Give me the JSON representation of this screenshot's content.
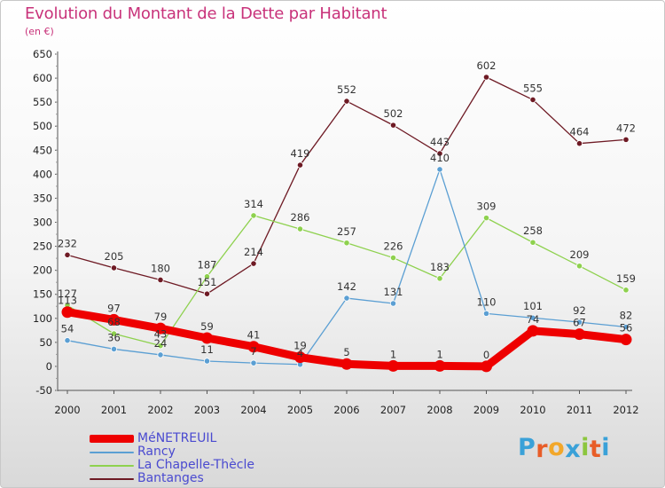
{
  "title": "Evolution du Montant de la Dette par Habitant",
  "subtitle": "(en €)",
  "logo": {
    "letters": [
      "P",
      "r",
      "o",
      "x",
      "i",
      "t",
      "i"
    ],
    "colors": [
      "#3aa1d8",
      "#e85d28",
      "#f2a72a",
      "#3aa1d8",
      "#8cc63e",
      "#e85d28",
      "#3aa1d8"
    ]
  },
  "chart_data": {
    "type": "line",
    "title": "Evolution du Montant de la Dette par Habitant",
    "ylabel": "(en €)",
    "xlabel": "",
    "x": [
      "2000",
      "2001",
      "2002",
      "2003",
      "2004",
      "2005",
      "2006",
      "2007",
      "2008",
      "2009",
      "2010",
      "2011",
      "2012"
    ],
    "ylim": [
      -50,
      650
    ],
    "yticks": [
      -50,
      0,
      50,
      100,
      150,
      200,
      250,
      300,
      350,
      400,
      450,
      500,
      550,
      600,
      650
    ],
    "grid": false,
    "legend_position": "bottom-left",
    "series": [
      {
        "name": "Bantanges",
        "color": "#6e1a24",
        "values": [
          232,
          205,
          180,
          151,
          214,
          419,
          552,
          502,
          443,
          602,
          555,
          464,
          472
        ]
      },
      {
        "name": "La Chapelle-Thècle",
        "color": "#8ed14e",
        "values": [
          127,
          68,
          43,
          187,
          314,
          286,
          257,
          226,
          183,
          309,
          258,
          209,
          159
        ]
      },
      {
        "name": "Rancy",
        "color": "#5b9fd3",
        "values": [
          54,
          36,
          24,
          11,
          7,
          4,
          142,
          131,
          410,
          110,
          101,
          92,
          82
        ]
      },
      {
        "name": "MéNETREUIL",
        "color": "#ee0000",
        "values": [
          113,
          97,
          79,
          59,
          41,
          19,
          5,
          1,
          1,
          0,
          74,
          67,
          56
        ]
      }
    ],
    "legend_order": [
      "MéNETREUIL",
      "Rancy",
      "La Chapelle-Thècle",
      "Bantanges"
    ]
  }
}
